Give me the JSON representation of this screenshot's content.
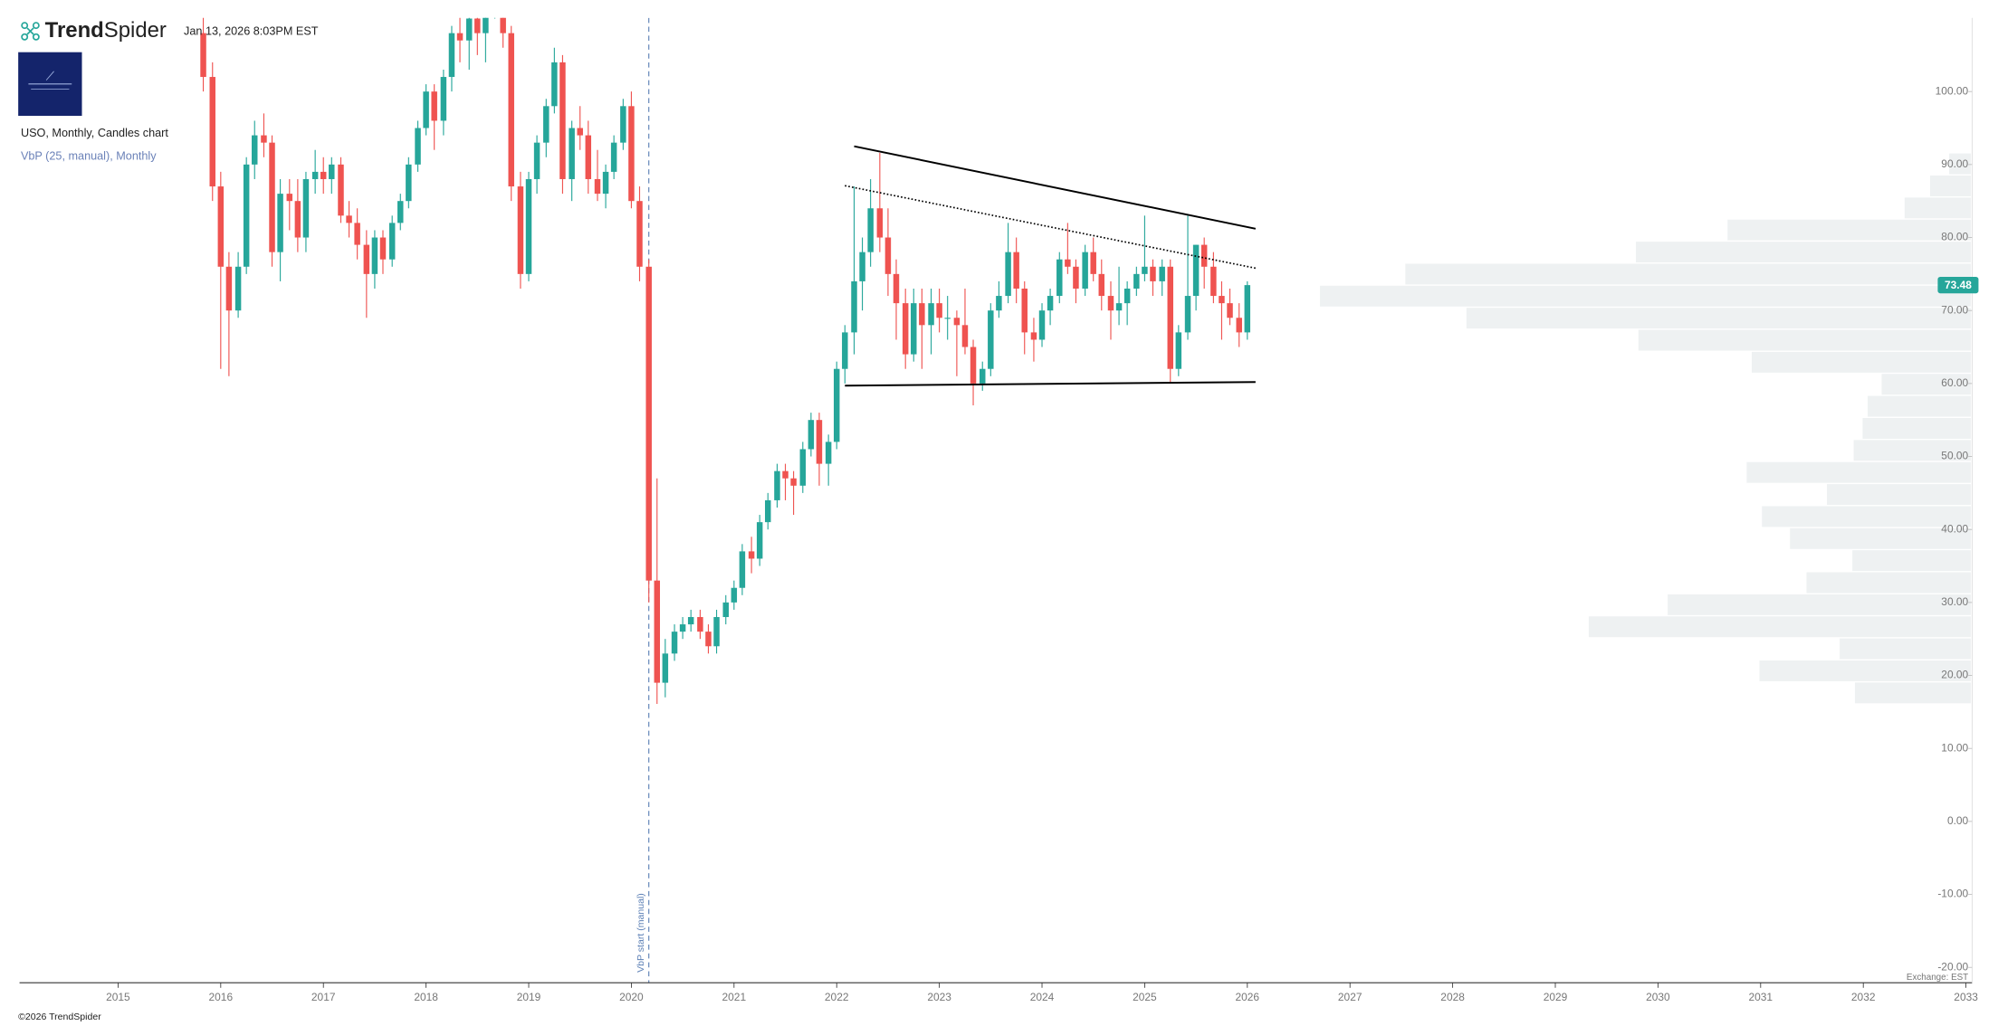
{
  "header": {
    "brand_bold": "Trend",
    "brand_rest": "Spider",
    "timestamp": "Jan 13, 2026 8:03PM EST",
    "chart_label": "USO, Monthly, Candles chart",
    "indicator_label": "VbP (25, manual), Monthly"
  },
  "footer": {
    "copyright": "©2026 TrendSpider",
    "exchange": "Exchange: EST"
  },
  "chart_data": {
    "type": "candlestick",
    "up_color": "#26a69a",
    "down_color": "#ef5350",
    "x": [
      2015.83,
      2015.92,
      2016.0,
      2016.08,
      2016.17,
      2016.25,
      2016.33,
      2016.42,
      2016.5,
      2016.58,
      2016.67,
      2016.75,
      2016.83,
      2016.92,
      2017.0,
      2017.08,
      2017.17,
      2017.25,
      2017.33,
      2017.42,
      2017.5,
      2017.58,
      2017.67,
      2017.75,
      2017.83,
      2017.92,
      2018.0,
      2018.08,
      2018.17,
      2018.25,
      2018.33,
      2018.42,
      2018.5,
      2018.58,
      2018.67,
      2018.75,
      2018.83,
      2018.92,
      2019.0,
      2019.08,
      2019.17,
      2019.25,
      2019.33,
      2019.42,
      2019.5,
      2019.58,
      2019.67,
      2019.75,
      2019.83,
      2019.92,
      2020.0,
      2020.08,
      2020.17,
      2020.25,
      2020.33,
      2020.42,
      2020.5,
      2020.58,
      2020.67,
      2020.75,
      2020.83,
      2020.92,
      2021.0,
      2021.08,
      2021.17,
      2021.25,
      2021.33,
      2021.42,
      2021.5,
      2021.58,
      2021.67,
      2021.75,
      2021.83,
      2021.92,
      2022.0,
      2022.08,
      2022.17,
      2022.25,
      2022.33,
      2022.42,
      2022.5,
      2022.58,
      2022.67,
      2022.75,
      2022.83,
      2022.92,
      2023.0,
      2023.08,
      2023.17,
      2023.25,
      2023.33,
      2023.42,
      2023.5,
      2023.58,
      2023.67,
      2023.75,
      2023.83,
      2023.92,
      2024.0,
      2024.08,
      2024.17,
      2024.25,
      2024.33,
      2024.42,
      2024.5,
      2024.58,
      2024.67,
      2024.75,
      2024.83,
      2024.92,
      2025.0,
      2025.08,
      2025.17,
      2025.25,
      2025.33,
      2025.42,
      2025.5,
      2025.58,
      2025.67,
      2025.75,
      2025.83,
      2025.92,
      2026.0
    ],
    "ohlc": [
      [
        108,
        112,
        100,
        102
      ],
      [
        102,
        104,
        85,
        87
      ],
      [
        87,
        89,
        62,
        76
      ],
      [
        76,
        78,
        61,
        70
      ],
      [
        70,
        78,
        69,
        76
      ],
      [
        76,
        91,
        75,
        90
      ],
      [
        90,
        96,
        88,
        94
      ],
      [
        94,
        97,
        91,
        93
      ],
      [
        93,
        94,
        76,
        78
      ],
      [
        78,
        88,
        74,
        86
      ],
      [
        86,
        88,
        81,
        85
      ],
      [
        85,
        88,
        78,
        80
      ],
      [
        80,
        89,
        78,
        88
      ],
      [
        88,
        92,
        86,
        89
      ],
      [
        89,
        91,
        86,
        88
      ],
      [
        88,
        91,
        86,
        90
      ],
      [
        90,
        91,
        82,
        83
      ],
      [
        83,
        85,
        80,
        82
      ],
      [
        82,
        84,
        77,
        79
      ],
      [
        79,
        81,
        69,
        75
      ],
      [
        75,
        81,
        73,
        80
      ],
      [
        80,
        81,
        75,
        77
      ],
      [
        77,
        83,
        76,
        82
      ],
      [
        82,
        86,
        81,
        85
      ],
      [
        85,
        91,
        84,
        90
      ],
      [
        90,
        96,
        89,
        95
      ],
      [
        95,
        101,
        94,
        100
      ],
      [
        100,
        101,
        92,
        96
      ],
      [
        96,
        103,
        94,
        102
      ],
      [
        102,
        109,
        100,
        108
      ],
      [
        108,
        112,
        104,
        107
      ],
      [
        107,
        112,
        103,
        110
      ],
      [
        110,
        113,
        105,
        108
      ],
      [
        108,
        113,
        104,
        112
      ],
      [
        112,
        118,
        110,
        117
      ],
      [
        117,
        119,
        106,
        108
      ],
      [
        108,
        109,
        85,
        87
      ],
      [
        87,
        89,
        73,
        75
      ],
      [
        75,
        89,
        74,
        88
      ],
      [
        88,
        94,
        86,
        93
      ],
      [
        93,
        99,
        91,
        98
      ],
      [
        98,
        106,
        97,
        104
      ],
      [
        104,
        105,
        86,
        88
      ],
      [
        88,
        96,
        85,
        95
      ],
      [
        95,
        98,
        92,
        94
      ],
      [
        94,
        96,
        86,
        88
      ],
      [
        88,
        92,
        85,
        86
      ],
      [
        86,
        90,
        84,
        89
      ],
      [
        89,
        94,
        88,
        93
      ],
      [
        93,
        99,
        92,
        98
      ],
      [
        98,
        100,
        84,
        85
      ],
      [
        85,
        87,
        74,
        76
      ],
      [
        76,
        77,
        30,
        33
      ],
      [
        33,
        47,
        16.1,
        19
      ],
      [
        19,
        25,
        17,
        23
      ],
      [
        23,
        27,
        22,
        26
      ],
      [
        26,
        28,
        25,
        27
      ],
      [
        27,
        29,
        26,
        28
      ],
      [
        28,
        29,
        25,
        26
      ],
      [
        26,
        27,
        23,
        24
      ],
      [
        24,
        29,
        23,
        28
      ],
      [
        28,
        31,
        27,
        30
      ],
      [
        30,
        33,
        29,
        32
      ],
      [
        32,
        38,
        31,
        37
      ],
      [
        37,
        39,
        34,
        36
      ],
      [
        36,
        42,
        35,
        41
      ],
      [
        41,
        45,
        40,
        44
      ],
      [
        44,
        49,
        43,
        48
      ],
      [
        48,
        49,
        44,
        47
      ],
      [
        47,
        48,
        42,
        46
      ],
      [
        46,
        52,
        45,
        51
      ],
      [
        51,
        56,
        50,
        55
      ],
      [
        55,
        56,
        46,
        49
      ],
      [
        49,
        53,
        46,
        52
      ],
      [
        52,
        63,
        51,
        62
      ],
      [
        62,
        68,
        60,
        67
      ],
      [
        67,
        87,
        64,
        74
      ],
      [
        74,
        80,
        70,
        78
      ],
      [
        78,
        88,
        76,
        84
      ],
      [
        84,
        91.6,
        78,
        80
      ],
      [
        80,
        84,
        72,
        75
      ],
      [
        75,
        77,
        66,
        71
      ],
      [
        71,
        73,
        62,
        64
      ],
      [
        64,
        73,
        63,
        71
      ],
      [
        71,
        73,
        62,
        68
      ],
      [
        68,
        73,
        64,
        71
      ],
      [
        71,
        73,
        67,
        69
      ],
      [
        69,
        72,
        66,
        69
      ],
      [
        69,
        70,
        61,
        68
      ],
      [
        68,
        73,
        64,
        65
      ],
      [
        65,
        66,
        57,
        60
      ],
      [
        60,
        63,
        59,
        62
      ],
      [
        62,
        71,
        61,
        70
      ],
      [
        70,
        74,
        69,
        72
      ],
      [
        72,
        82,
        71,
        78
      ],
      [
        78,
        80,
        71,
        73
      ],
      [
        73,
        74,
        64,
        67
      ],
      [
        67,
        69,
        63,
        66
      ],
      [
        66,
        71,
        65,
        70
      ],
      [
        70,
        73,
        68,
        72
      ],
      [
        72,
        78,
        71,
        77
      ],
      [
        77,
        82,
        75,
        76
      ],
      [
        76,
        77,
        71,
        73
      ],
      [
        73,
        79,
        72,
        78
      ],
      [
        78,
        80,
        74,
        75
      ],
      [
        75,
        77,
        70,
        72
      ],
      [
        72,
        74,
        66,
        70
      ],
      [
        70,
        76,
        68,
        71
      ],
      [
        71,
        74,
        68,
        73
      ],
      [
        73,
        76,
        72,
        75
      ],
      [
        75,
        83,
        74,
        76
      ],
      [
        76,
        77,
        72,
        74
      ],
      [
        74,
        77,
        72,
        76
      ],
      [
        76,
        77,
        60,
        62
      ],
      [
        62,
        68,
        61,
        67
      ],
      [
        67,
        83,
        66,
        72
      ],
      [
        72,
        79,
        70,
        79
      ],
      [
        79,
        80,
        73,
        76
      ],
      [
        76,
        78,
        71,
        72
      ],
      [
        72,
        74,
        66,
        71
      ],
      [
        71,
        73,
        68,
        69
      ],
      [
        69,
        71,
        65,
        67
      ],
      [
        67,
        74,
        66,
        73.48
      ]
    ],
    "xlim": [
      2014.04,
      2033.06
    ],
    "xticks": [
      2015,
      2016,
      2017,
      2018,
      2019,
      2020,
      2021,
      2022,
      2023,
      2024,
      2025,
      2026,
      2027,
      2028,
      2029,
      2030,
      2031,
      2032,
      2033
    ],
    "ylim": [
      -22.1,
      110.1
    ],
    "yticks": [
      {
        "value": -20,
        "label": "-20.00"
      },
      {
        "value": -10,
        "label": "-10.00"
      },
      {
        "value": 0,
        "label": "0.00"
      },
      {
        "value": 10,
        "label": "10.00"
      },
      {
        "value": 20,
        "label": "20.00"
      },
      {
        "value": 30,
        "label": "30.00"
      },
      {
        "value": 40,
        "label": "40.00"
      },
      {
        "value": 50,
        "label": "50.00"
      },
      {
        "value": 60,
        "label": "60.00"
      },
      {
        "value": 70,
        "label": "70.00"
      },
      {
        "value": 80,
        "label": "80.00"
      },
      {
        "value": 90,
        "label": "90.00"
      },
      {
        "value": 100,
        "label": "100.00"
      }
    ],
    "volume_profile": {
      "color": "#eef1f2",
      "bins": [
        16.1,
        19.12,
        22.14,
        25.16,
        28.18,
        31.2,
        34.22,
        37.24,
        40.26,
        43.28,
        46.3,
        49.32,
        52.34,
        55.36,
        58.38,
        61.4,
        64.42,
        67.44,
        70.46,
        73.48,
        76.5,
        79.52,
        82.54,
        85.56,
        88.58,
        91.6
      ],
      "values": [
        91,
        166,
        103,
        300,
        238,
        129,
        93,
        142,
        164,
        113,
        176,
        92,
        85,
        81,
        70,
        172,
        261,
        396,
        511,
        444,
        263,
        191,
        52,
        32,
        17
      ]
    },
    "vbp_start": {
      "x": 2020.17,
      "label": "VbP start (manual)",
      "color": "#5b7fb5"
    },
    "trendlines": [
      {
        "x": [
          2022.17,
          2026.08
        ],
        "y": [
          92.5,
          81.2
        ],
        "style": "solid"
      },
      {
        "x": [
          2022.08,
          2026.08
        ],
        "y": [
          87.1,
          75.8
        ],
        "style": "dotted"
      },
      {
        "x": [
          2022.08,
          2026.08
        ],
        "y": [
          59.7,
          60.2
        ],
        "style": "solid"
      }
    ]
  }
}
